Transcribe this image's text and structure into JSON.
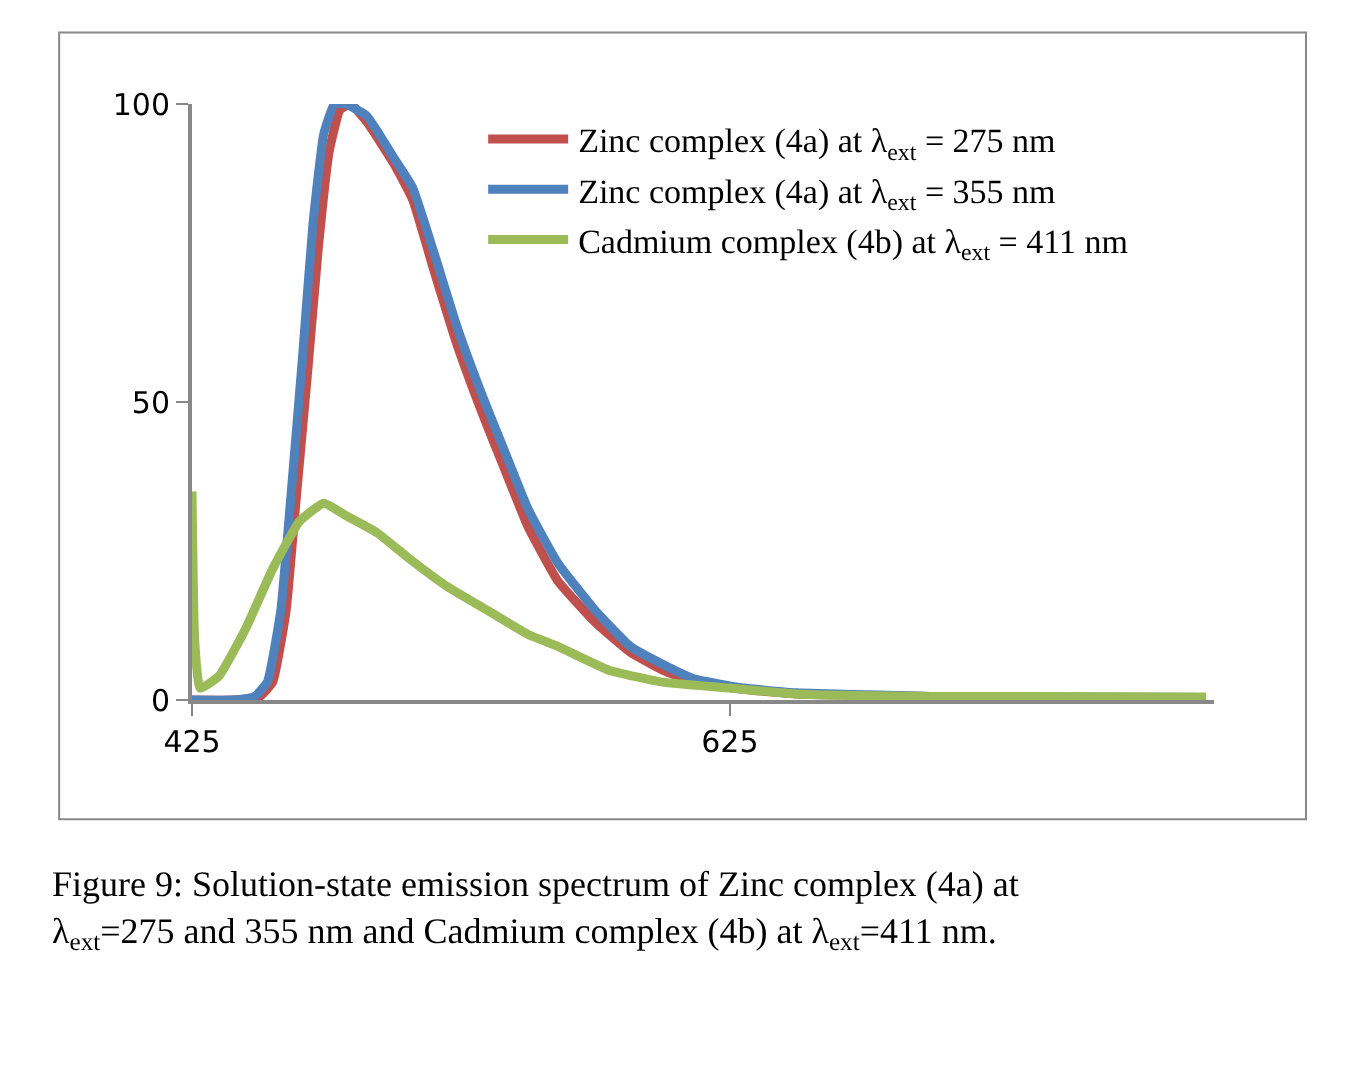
{
  "chart_data": {
    "type": "line",
    "x": [
      425,
      440,
      450,
      455,
      460,
      463,
      468,
      472,
      476,
      480,
      484,
      490,
      500,
      507,
      515,
      524,
      533,
      541,
      550,
      561,
      575,
      588,
      600,
      612,
      630,
      650,
      700
    ],
    "series": [
      {
        "name": "Zinc complex (4a) at λ$_{ext}$ = 275 nm",
        "color": "#c0504d",
        "values": [
          0,
          0,
          0.5,
          3,
          15,
          30,
          55,
          76,
          92,
          99,
          100,
          97,
          90,
          84,
          72,
          59,
          48,
          39,
          29,
          20,
          13,
          8,
          5,
          3,
          1.8,
          1,
          0.6
        ]
      },
      {
        "name": "Zinc complex (4a) at λ$_{ext}$ = 355 nm",
        "color": "#4f81bd",
        "x": [
          425,
          440,
          448,
          453,
          458,
          461,
          466,
          470,
          474,
          478,
          482,
          490,
          500,
          507,
          515,
          524,
          533,
          541,
          550,
          561,
          575,
          588,
          600,
          612,
          630,
          650,
          700,
          750,
          802
        ],
        "values": [
          0,
          0,
          0.5,
          3,
          15,
          30,
          57,
          80,
          95,
          100,
          100,
          98,
          91,
          86,
          75,
          62,
          51,
          42,
          32,
          23,
          15,
          9,
          6,
          3.5,
          2,
          1.2,
          0.6,
          0.5,
          0.4
        ]
      },
      {
        "name": "Cadmium complex (4b) at λ$_{ext}$ = 411 nm",
        "color": "#9bbb59",
        "x": [
          425,
          426,
          428,
          435,
          445,
          455,
          465,
          474,
          482,
          494,
          505,
          520,
          535,
          550,
          561,
          580,
          600,
          625,
          650,
          700,
          802
        ],
        "values": [
          35,
          10,
          2,
          4,
          12,
          22,
          30,
          33,
          31,
          28,
          24,
          19,
          15,
          11,
          9,
          5,
          3,
          2,
          1,
          0.6,
          0.5
        ]
      }
    ],
    "xlim": [
      425,
      805
    ],
    "xticks": [
      425,
      625
    ],
    "ylim": [
      0,
      100
    ],
    "yticks": [
      0,
      50,
      100
    ],
    "grid": false,
    "legend": "top right",
    "marker": "none",
    "line_style": "solid",
    "annotations": [
      "Figure 9: Solution-state emission spectrum of Zinc complex (4a) at λ$_{ext}$=275 and 355 nm and Cadmium complex (4b) at λ$_{ext}$=411 nm."
    ]
  }
}
